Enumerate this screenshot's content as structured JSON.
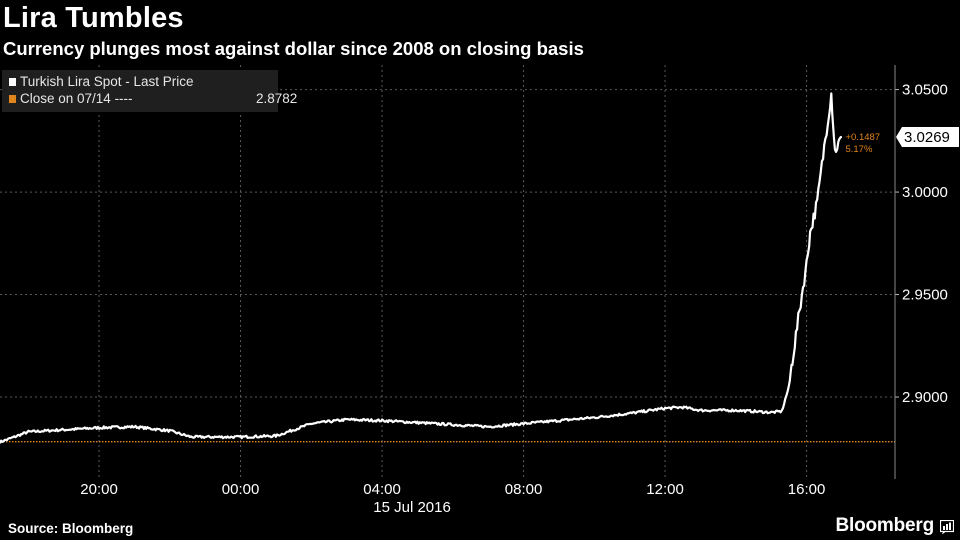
{
  "title": "Lira Tumbles",
  "subtitle": "Currency plunges most against dollar since 2008 on closing basis",
  "legend": {
    "series_label": "Turkish Lira Spot - Last Price",
    "close_label": "Close on 07/14 ----",
    "close_value": "2.8782"
  },
  "footer": {
    "source": "Source: Bloomberg",
    "brand": "Bloomberg",
    "brand_icon": "bloomberg-terminal-icon"
  },
  "colors": {
    "background": "#000000",
    "line": "#ffffff",
    "reference": "#e0841c",
    "grid": "#5a5a5a"
  },
  "chart_data": {
    "type": "line",
    "title": "Lira Tumbles",
    "subtitle": "Currency plunges most against dollar since 2008 on closing basis",
    "xlabel": "15 Jul 2016",
    "x_unit": "hours relative to 00:00 on 15 Jul 2016",
    "xlim": [
      -6.8,
      18.5
    ],
    "ylim": [
      2.86,
      3.062
    ],
    "x_ticks": [
      -4,
      0,
      4,
      8,
      12,
      16
    ],
    "x_tick_labels": [
      "20:00",
      "00:00",
      "04:00",
      "08:00",
      "12:00",
      "16:00"
    ],
    "y_ticks": [
      2.9,
      2.95,
      3.0,
      3.05
    ],
    "y_tick_labels": [
      "2.9000",
      "2.9500",
      "3.0000",
      "3.0500"
    ],
    "y_axis_position": "right",
    "grid": true,
    "series": [
      {
        "name": "Turkish Lira Spot - Last Price",
        "x": [
          -6.8,
          -6.0,
          -5.0,
          -4.0,
          -3.0,
          -2.0,
          -1.4,
          -0.5,
          0.0,
          1.0,
          2.0,
          3.0,
          4.0,
          5.0,
          6.0,
          7.0,
          8.0,
          9.0,
          10.0,
          11.0,
          12.0,
          12.5,
          13.0,
          14.0,
          15.0,
          15.3,
          15.5,
          15.6,
          15.8,
          16.0,
          16.1,
          16.3,
          16.5,
          16.7,
          16.8,
          17.0
        ],
        "values": [
          2.878,
          2.883,
          2.884,
          2.885,
          2.8855,
          2.8835,
          2.8805,
          2.8805,
          2.8805,
          2.881,
          2.887,
          2.889,
          2.8885,
          2.8875,
          2.8865,
          2.8855,
          2.887,
          2.8885,
          2.89,
          2.892,
          2.8945,
          2.895,
          2.8935,
          2.8935,
          2.8925,
          2.893,
          2.905,
          2.918,
          2.942,
          2.965,
          2.98,
          2.995,
          3.022,
          3.048,
          3.02,
          3.0269
        ]
      },
      {
        "name": "Close on 07/14",
        "x": [
          -6.8,
          18.5
        ],
        "values": [
          2.8782,
          2.8782
        ]
      }
    ],
    "last_value_label": "3.0269",
    "change_label": "+0.1487",
    "change_pct_label": "5.17%"
  }
}
